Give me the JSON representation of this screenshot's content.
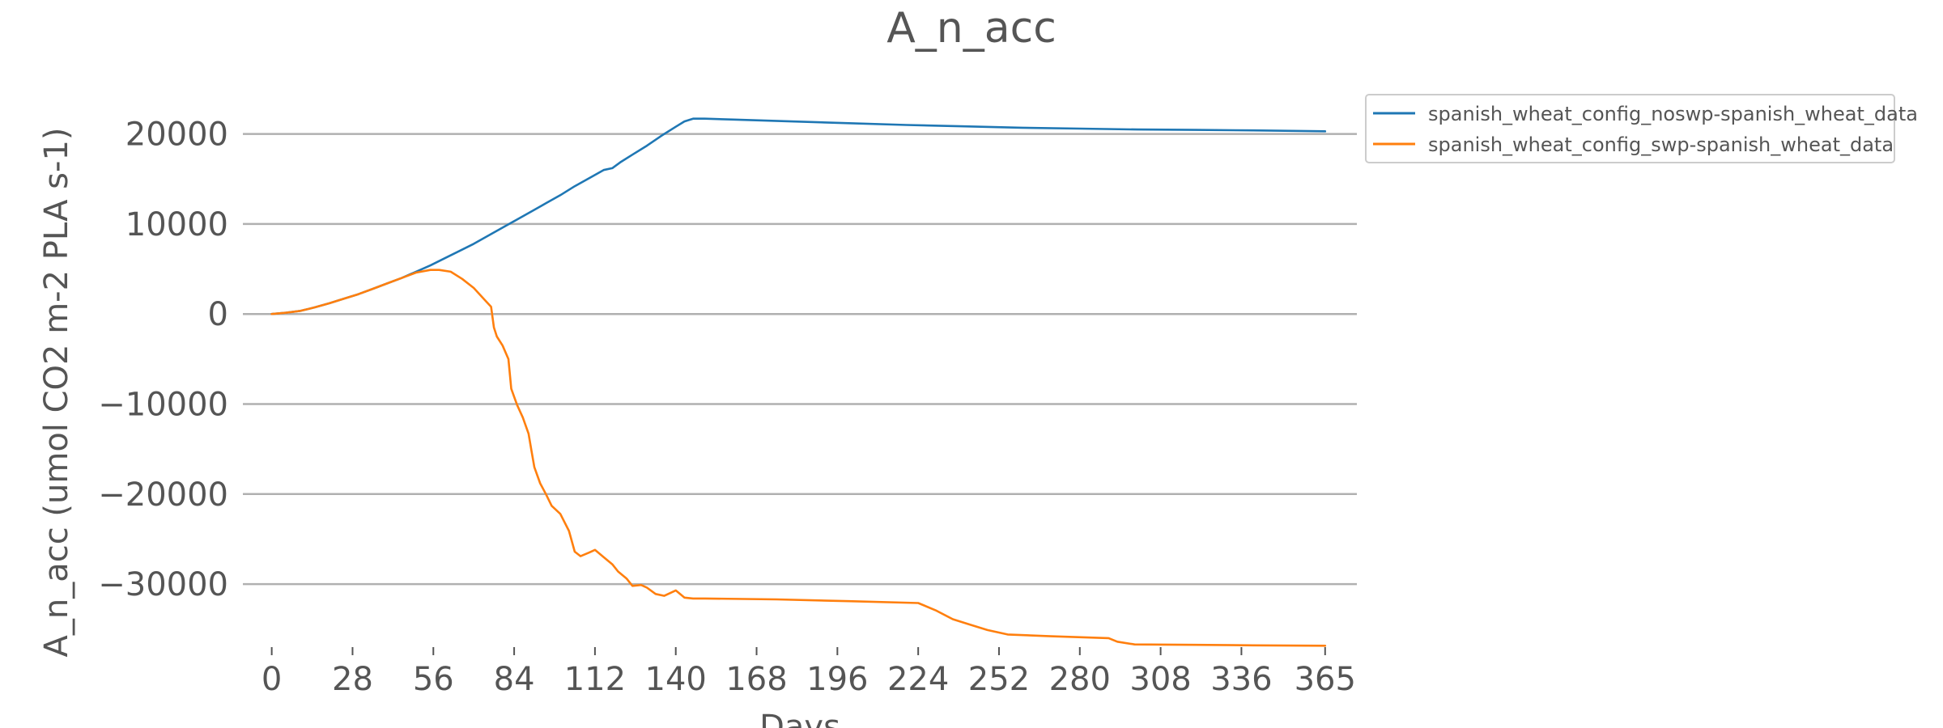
{
  "chart_data": {
    "type": "line",
    "title": "A_n_acc",
    "xlabel": "Days",
    "ylabel": "A_n_acc (umol CO2 m-2 PLA s-1)",
    "xlim": [
      -10,
      376
    ],
    "ylim": [
      -37000,
      25000
    ],
    "xticks": [
      0,
      28,
      56,
      84,
      112,
      140,
      168,
      196,
      224,
      252,
      280,
      308,
      336,
      365
    ],
    "yticks": [
      20000,
      10000,
      0,
      -10000,
      -20000,
      -30000
    ],
    "ytick_labels": [
      "20000",
      "10000",
      "0",
      "−10000",
      "−20000",
      "−30000"
    ],
    "grid": "horizontal",
    "legend_position": "outside-top-right",
    "series": [
      {
        "name": "spanish_wheat_config_noswp-spanish_wheat_data",
        "color": "#1f77b4",
        "x": [
          0,
          5,
          10,
          15,
          20,
          25,
          30,
          35,
          40,
          45,
          50,
          55,
          60,
          65,
          70,
          75,
          80,
          85,
          90,
          95,
          100,
          105,
          110,
          115,
          118,
          121,
          125,
          130,
          135,
          140,
          143,
          146,
          150,
          160,
          180,
          200,
          220,
          240,
          260,
          280,
          300,
          320,
          340,
          365
        ],
        "y": [
          0,
          150,
          350,
          750,
          1200,
          1700,
          2200,
          2800,
          3400,
          4000,
          4700,
          5400,
          6200,
          7000,
          7800,
          8700,
          9600,
          10500,
          11400,
          12300,
          13200,
          14200,
          15100,
          16000,
          16200,
          16900,
          17700,
          18700,
          19800,
          20800,
          21400,
          21700,
          21700,
          21600,
          21400,
          21200,
          21000,
          20850,
          20700,
          20600,
          20500,
          20450,
          20400,
          20300
        ]
      },
      {
        "name": "spanish_wheat_config_swp-spanish_wheat_data",
        "color": "#ff7f0e",
        "x": [
          0,
          5,
          10,
          15,
          20,
          25,
          30,
          35,
          40,
          45,
          50,
          55,
          58,
          62,
          66,
          70,
          74,
          76,
          77,
          78,
          80,
          82,
          83,
          85,
          87,
          89,
          90,
          91,
          93,
          95,
          97,
          100,
          103,
          105,
          107,
          110,
          112,
          115,
          118,
          120,
          123,
          125,
          128,
          130,
          133,
          136,
          140,
          143,
          146,
          150,
          175,
          200,
          224,
          230,
          236,
          242,
          248,
          255,
          270,
          290,
          293,
          299,
          320,
          340,
          365
        ],
        "y": [
          0,
          150,
          350,
          750,
          1200,
          1700,
          2200,
          2800,
          3400,
          4000,
          4600,
          4900,
          4900,
          4700,
          3900,
          2900,
          1500,
          800,
          -1500,
          -2500,
          -3500,
          -5000,
          -8300,
          -10100,
          -11500,
          -13300,
          -15200,
          -17000,
          -18800,
          -20000,
          -21300,
          -22200,
          -24100,
          -26400,
          -26900,
          -26500,
          -26200,
          -27000,
          -27800,
          -28600,
          -29400,
          -30200,
          -30100,
          -30400,
          -31100,
          -31300,
          -30700,
          -31500,
          -31600,
          -31600,
          -31700,
          -31900,
          -32100,
          -32900,
          -33900,
          -34500,
          -35100,
          -35600,
          -35800,
          -36000,
          -36400,
          -36700,
          -36750,
          -36800,
          -36850
        ]
      }
    ]
  }
}
